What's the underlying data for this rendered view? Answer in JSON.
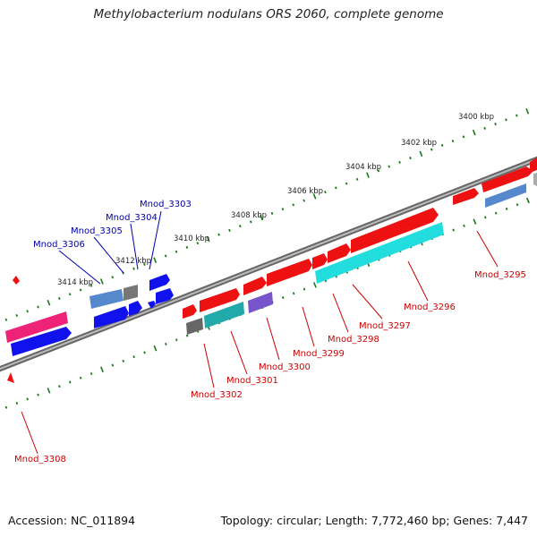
{
  "title": "Methylobacterium nodulans ORS 2060, complete genome",
  "accession": "Accession: NC_011894",
  "topology": "Topology: circular; Length: 7,772,460 bp; Genes: 7,447",
  "kbp_labels": [
    "3400 kbp",
    "3402 kbp",
    "3404 kbp",
    "3406 kbp",
    "3408 kbp",
    "3410 kbp",
    "3412 kbp",
    "3414 kbp"
  ],
  "gene_labels_outer": [
    "Mnod_3303",
    "Mnod_3304",
    "Mnod_3305",
    "Mnod_3306"
  ],
  "gene_labels_inner": [
    "Mnod_3295",
    "Mnod_3296",
    "Mnod_3297",
    "Mnod_3298",
    "Mnod_3299",
    "Mnod_3300",
    "Mnod_3301",
    "Mnod_3302",
    "Mnod_3308"
  ],
  "colors": {
    "outer_label": "#0000aa",
    "inner_label": "#cc0000",
    "backbone": "#777777",
    "tick": "#1a7a1a"
  }
}
